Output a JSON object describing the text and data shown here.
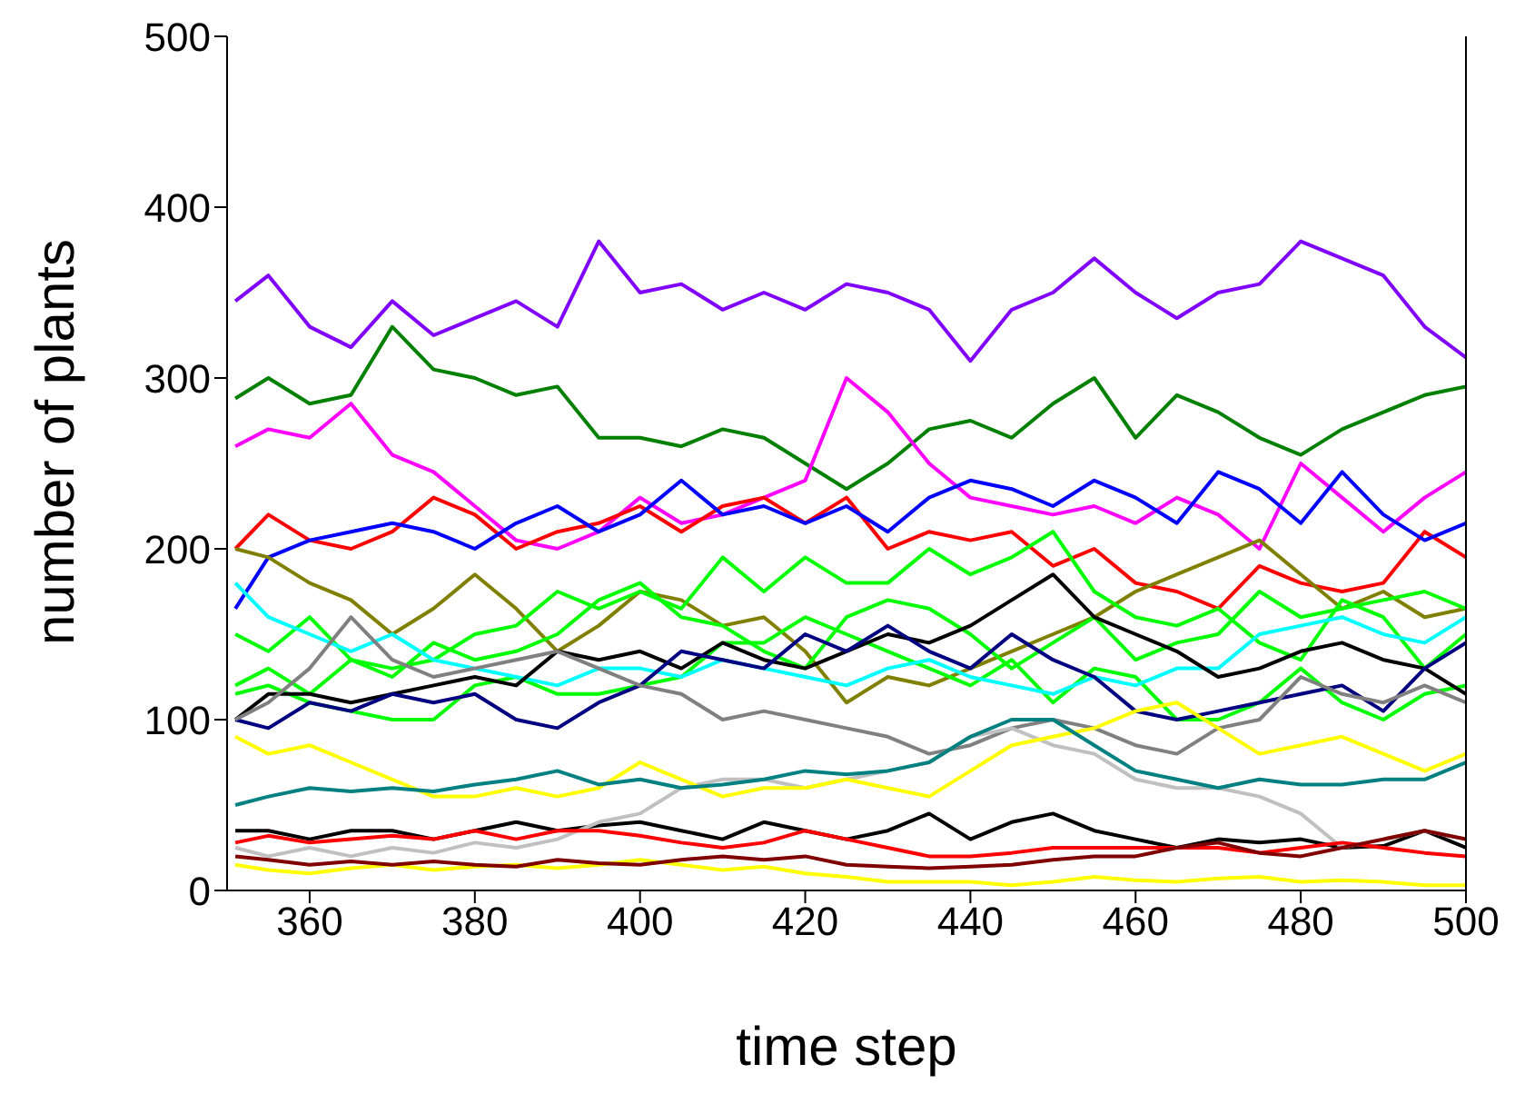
{
  "chart_data": {
    "type": "line",
    "xlabel": "time step",
    "ylabel": "number of plants",
    "x": [
      351,
      355,
      360,
      365,
      370,
      375,
      380,
      385,
      390,
      395,
      400,
      405,
      410,
      415,
      420,
      425,
      430,
      435,
      440,
      445,
      450,
      455,
      460,
      465,
      470,
      475,
      480,
      485,
      490,
      495,
      500
    ],
    "xlim": [
      350,
      500
    ],
    "xticks": [
      360,
      380,
      400,
      420,
      440,
      460,
      480,
      500
    ],
    "ylim": [
      0,
      500
    ],
    "yticks": [
      0,
      100,
      200,
      300,
      400,
      500
    ],
    "grid": false,
    "legend": false,
    "marker": "none",
    "line_style": "solid",
    "series": [
      {
        "color": "#8000ff",
        "values": [
          345,
          360,
          330,
          318,
          345,
          325,
          335,
          345,
          330,
          380,
          350,
          355,
          340,
          350,
          340,
          355,
          350,
          340,
          310,
          340,
          350,
          370,
          350,
          335,
          350,
          355,
          380,
          370,
          360,
          330,
          312
        ]
      },
      {
        "color": "#008000",
        "values": [
          288,
          300,
          285,
          290,
          330,
          305,
          300,
          290,
          295,
          265,
          265,
          260,
          270,
          265,
          250,
          235,
          250,
          270,
          275,
          265,
          285,
          300,
          265,
          290,
          280,
          265,
          255,
          270,
          280,
          290,
          295
        ]
      },
      {
        "color": "#ff00ff",
        "values": [
          260,
          270,
          265,
          285,
          255,
          245,
          225,
          205,
          200,
          210,
          230,
          215,
          220,
          230,
          240,
          300,
          280,
          250,
          230,
          225,
          220,
          225,
          215,
          230,
          220,
          200,
          250,
          230,
          210,
          230,
          245
        ]
      },
      {
        "color": "#ff0000",
        "values": [
          200,
          220,
          205,
          200,
          210,
          230,
          220,
          200,
          210,
          215,
          225,
          210,
          225,
          230,
          215,
          230,
          200,
          210,
          205,
          210,
          190,
          200,
          180,
          175,
          165,
          190,
          180,
          175,
          180,
          210,
          195
        ]
      },
      {
        "color": "#0000ff",
        "values": [
          165,
          195,
          205,
          210,
          215,
          210,
          200,
          215,
          225,
          210,
          220,
          240,
          220,
          225,
          215,
          225,
          210,
          230,
          240,
          235,
          225,
          240,
          230,
          215,
          245,
          235,
          215,
          245,
          220,
          205,
          215
        ]
      },
      {
        "color": "#808000",
        "values": [
          200,
          195,
          180,
          170,
          150,
          165,
          185,
          165,
          140,
          155,
          175,
          170,
          155,
          160,
          140,
          110,
          125,
          120,
          130,
          140,
          150,
          160,
          175,
          185,
          195,
          205,
          185,
          165,
          175,
          160,
          165
        ]
      },
      {
        "color": "#00ff00",
        "values": [
          150,
          140,
          160,
          135,
          130,
          135,
          150,
          155,
          175,
          165,
          175,
          165,
          195,
          175,
          195,
          180,
          180,
          200,
          185,
          195,
          210,
          175,
          160,
          155,
          165,
          145,
          135,
          170,
          160,
          130,
          150
        ]
      },
      {
        "color": "#00ff00",
        "values": [
          115,
          120,
          110,
          105,
          100,
          100,
          120,
          125,
          115,
          115,
          120,
          125,
          145,
          145,
          160,
          150,
          140,
          130,
          120,
          135,
          110,
          130,
          125,
          100,
          100,
          110,
          130,
          110,
          100,
          115,
          120
        ]
      },
      {
        "color": "#00ff00",
        "values": [
          120,
          130,
          115,
          135,
          125,
          145,
          135,
          140,
          150,
          170,
          180,
          160,
          155,
          140,
          130,
          160,
          170,
          165,
          150,
          130,
          145,
          160,
          135,
          145,
          150,
          175,
          160,
          165,
          170,
          175,
          165
        ]
      },
      {
        "color": "#00ffff",
        "values": [
          180,
          160,
          150,
          140,
          150,
          135,
          130,
          125,
          120,
          130,
          130,
          125,
          135,
          130,
          125,
          120,
          130,
          135,
          125,
          120,
          115,
          125,
          120,
          130,
          130,
          150,
          155,
          160,
          150,
          145,
          160
        ]
      },
      {
        "color": "#000000",
        "values": [
          100,
          115,
          115,
          110,
          115,
          120,
          125,
          120,
          140,
          135,
          140,
          130,
          145,
          135,
          130,
          140,
          150,
          145,
          155,
          170,
          185,
          160,
          150,
          140,
          125,
          130,
          140,
          145,
          135,
          130,
          115
        ]
      },
      {
        "color": "#000000",
        "values": [
          35,
          35,
          30,
          35,
          35,
          30,
          35,
          40,
          35,
          38,
          40,
          35,
          30,
          40,
          35,
          30,
          35,
          45,
          30,
          40,
          45,
          35,
          30,
          25,
          30,
          28,
          30,
          25,
          26,
          35,
          25
        ]
      },
      {
        "color": "#000080",
        "values": [
          100,
          95,
          110,
          105,
          115,
          110,
          115,
          100,
          95,
          110,
          120,
          140,
          135,
          130,
          150,
          140,
          155,
          140,
          130,
          150,
          135,
          125,
          105,
          100,
          105,
          110,
          115,
          120,
          105,
          130,
          145
        ]
      },
      {
        "color": "#808080",
        "values": [
          100,
          110,
          130,
          160,
          135,
          125,
          130,
          135,
          140,
          130,
          120,
          115,
          100,
          105,
          100,
          95,
          90,
          80,
          85,
          95,
          100,
          95,
          85,
          80,
          95,
          100,
          125,
          115,
          110,
          120,
          110
        ]
      },
      {
        "color": "#c0c0c0",
        "values": [
          25,
          20,
          25,
          20,
          25,
          22,
          28,
          25,
          30,
          40,
          45,
          60,
          65,
          65,
          60,
          65,
          70,
          75,
          90,
          95,
          85,
          80,
          65,
          60,
          60,
          55,
          45,
          25,
          30,
          35,
          30
        ]
      },
      {
        "color": "#ffff00",
        "values": [
          90,
          80,
          85,
          75,
          65,
          55,
          55,
          60,
          55,
          60,
          75,
          65,
          55,
          60,
          60,
          65,
          60,
          55,
          70,
          85,
          90,
          95,
          105,
          110,
          95,
          80,
          85,
          90,
          80,
          70,
          80
        ]
      },
      {
        "color": "#ffff00",
        "values": [
          15,
          12,
          10,
          13,
          15,
          12,
          14,
          15,
          13,
          15,
          18,
          15,
          12,
          14,
          10,
          8,
          5,
          5,
          5,
          3,
          5,
          8,
          6,
          5,
          7,
          8,
          5,
          6,
          5,
          3,
          3
        ]
      },
      {
        "color": "#008080",
        "values": [
          50,
          55,
          60,
          58,
          60,
          58,
          62,
          65,
          70,
          62,
          65,
          60,
          62,
          65,
          70,
          68,
          70,
          75,
          90,
          100,
          100,
          85,
          70,
          65,
          60,
          65,
          62,
          62,
          65,
          65,
          75
        ]
      },
      {
        "color": "#ff0000",
        "values": [
          28,
          32,
          28,
          30,
          32,
          30,
          35,
          30,
          35,
          35,
          32,
          28,
          25,
          28,
          35,
          30,
          25,
          20,
          20,
          22,
          25,
          25,
          25,
          25,
          25,
          22,
          25,
          28,
          25,
          22,
          20
        ]
      },
      {
        "color": "#800000",
        "values": [
          20,
          18,
          15,
          17,
          15,
          17,
          15,
          14,
          18,
          16,
          15,
          18,
          20,
          18,
          20,
          15,
          14,
          13,
          14,
          15,
          18,
          20,
          20,
          25,
          28,
          22,
          20,
          25,
          30,
          35,
          30
        ]
      }
    ]
  }
}
